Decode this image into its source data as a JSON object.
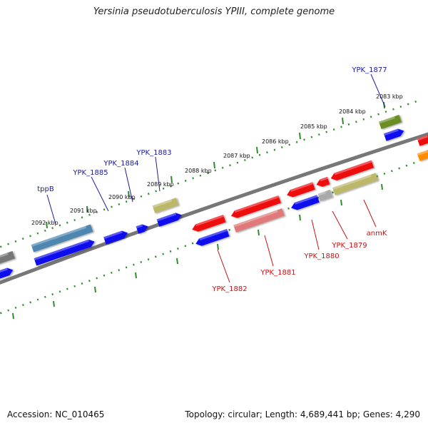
{
  "title": "Yersinia pseudotuberculosis YPIII, complete genome",
  "footer": {
    "accession": "Accession: NC_010465",
    "stats": "Topology: circular; Length: 4,689,441 bp; Genes: 4,290"
  },
  "colors": {
    "backbone": "#777777",
    "tick_marks": "#2e8b2e",
    "forward_label": "#1a1aa0",
    "reverse_label": "#cc1111",
    "blue_gene": "#1111ee",
    "red_gene": "#ee1111",
    "steel_gene": "#4d86b0",
    "olive_gene": "#6b8e23",
    "khaki_gene": "#bdb76b",
    "pink_gene": "#e07a7a",
    "grey_gene": "#aaaaaa",
    "orange_gene": "#ff8c00"
  },
  "ruler": [
    {
      "label": "2083 kbp"
    },
    {
      "label": "2084 kbp"
    },
    {
      "label": "2085 kbp"
    },
    {
      "label": "2086 kbp"
    },
    {
      "label": "2087 kbp"
    },
    {
      "label": "2088 kbp"
    },
    {
      "label": "2089 kbp"
    },
    {
      "label": "2090 kbp"
    },
    {
      "label": "2091 kbp"
    },
    {
      "label": "2092 kbp"
    }
  ],
  "forward_gene_labels": [
    {
      "label": "YPK_1877"
    },
    {
      "label": "YPK_1883"
    },
    {
      "label": "YPK_1884"
    },
    {
      "label": "YPK_1885"
    },
    {
      "label": "tppB"
    }
  ],
  "reverse_gene_labels": [
    {
      "label": "anmK"
    },
    {
      "label": "YPK_1879"
    },
    {
      "label": "YPK_1880"
    },
    {
      "label": "YPK_1881"
    },
    {
      "label": "YPK_1882"
    }
  ]
}
